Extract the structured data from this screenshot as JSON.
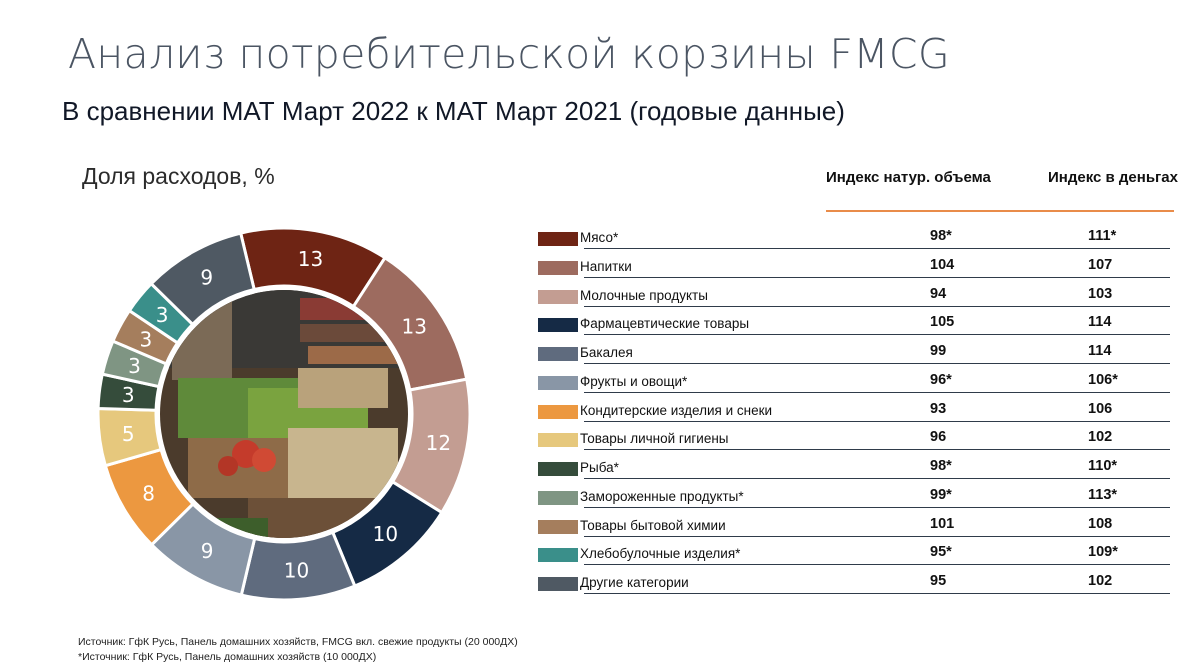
{
  "title": "Анализ потребительской корзины FMCG",
  "subtitle": "В сравнении МАТ Март 2022 к МАТ Март 2021 (годовые данные)",
  "chart_label": "Доля расходов, %",
  "columns": {
    "volume_index": "Индекс натур. объема",
    "money_index": "Индекс в деньгах"
  },
  "chart_data": {
    "type": "pie",
    "donut": true,
    "categories": [
      "Мясо*",
      "Напитки",
      "Молочные продукты",
      "Фармацевтические товары",
      "Бакалея",
      "Фрукты и овощи*",
      "Кондитерские изделия и снеки",
      "Товары личной гигиены",
      "Рыба*",
      "Замороженные продукты*",
      "Товары бытовой химии",
      "Хлебобулочные изделия*",
      "Другие категории"
    ],
    "values": [
      13,
      13,
      12,
      10,
      10,
      9,
      8,
      5,
      3,
      3,
      3,
      3,
      9
    ],
    "colors": [
      "#6e2414",
      "#9d6b5f",
      "#c39d92",
      "#152a45",
      "#5f6b7e",
      "#8996a6",
      "#ec9840",
      "#e6c87d",
      "#354c3b",
      "#7f9583",
      "#a57e5d",
      "#3a8f8a",
      "#4f5963"
    ],
    "volume_index": [
      "98*",
      "104",
      "94",
      "105",
      "99",
      "96*",
      "93",
      "96",
      "98*",
      "99*",
      "101",
      "95*",
      "95"
    ],
    "money_index": [
      "111*",
      "107",
      "103",
      "114",
      "114",
      "106*",
      "106",
      "102",
      "110*",
      "113*",
      "108",
      "109*",
      "102"
    ]
  },
  "sources": [
    "Источник: ГфК Русь, Панель домашних хозяйств, FMCG вкл. свежие продукты (20 000ДХ)",
    "*Источник: ГфК Русь, Панель домашних хозяйств (10 000ДХ)"
  ]
}
